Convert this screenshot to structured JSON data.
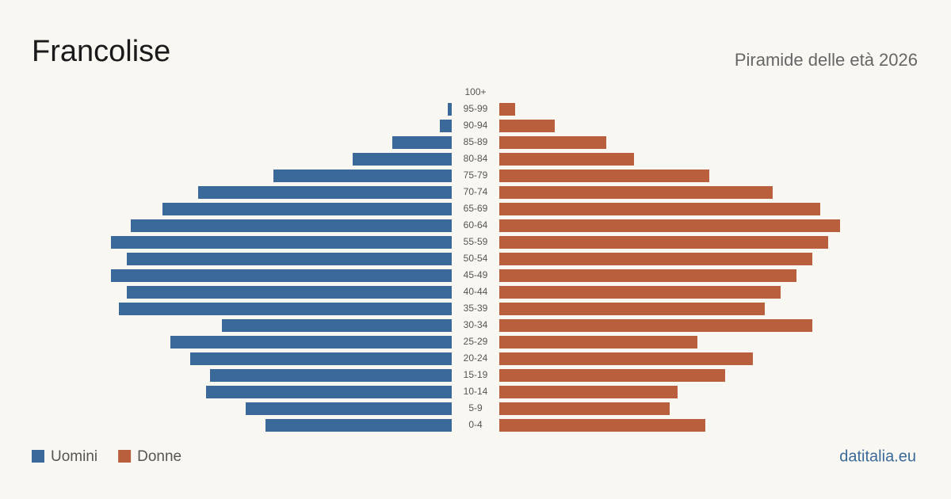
{
  "chart_data": {
    "type": "pyramid",
    "title": "Francolise",
    "subtitle": "Piramide delle età 2026",
    "source": "datitalia.eu",
    "categories": [
      "100+",
      "95-99",
      "90-94",
      "85-89",
      "80-84",
      "75-79",
      "70-74",
      "65-69",
      "60-64",
      "55-59",
      "50-54",
      "45-49",
      "40-44",
      "35-39",
      "30-34",
      "25-29",
      "20-24",
      "15-19",
      "10-14",
      "5-9",
      "0-4"
    ],
    "series": [
      {
        "name": "Uomini",
        "color": "#3b6a9a",
        "values": [
          0,
          1,
          3,
          15,
          25,
          45,
          64,
          73,
          81,
          86,
          82,
          86,
          82,
          84,
          58,
          71,
          66,
          61,
          62,
          52,
          47
        ]
      },
      {
        "name": "Donne",
        "color": "#b95f3e",
        "values": [
          0,
          4,
          14,
          27,
          34,
          53,
          69,
          81,
          86,
          83,
          79,
          75,
          71,
          67,
          79,
          50,
          64,
          57,
          45,
          43,
          52
        ]
      }
    ]
  }
}
